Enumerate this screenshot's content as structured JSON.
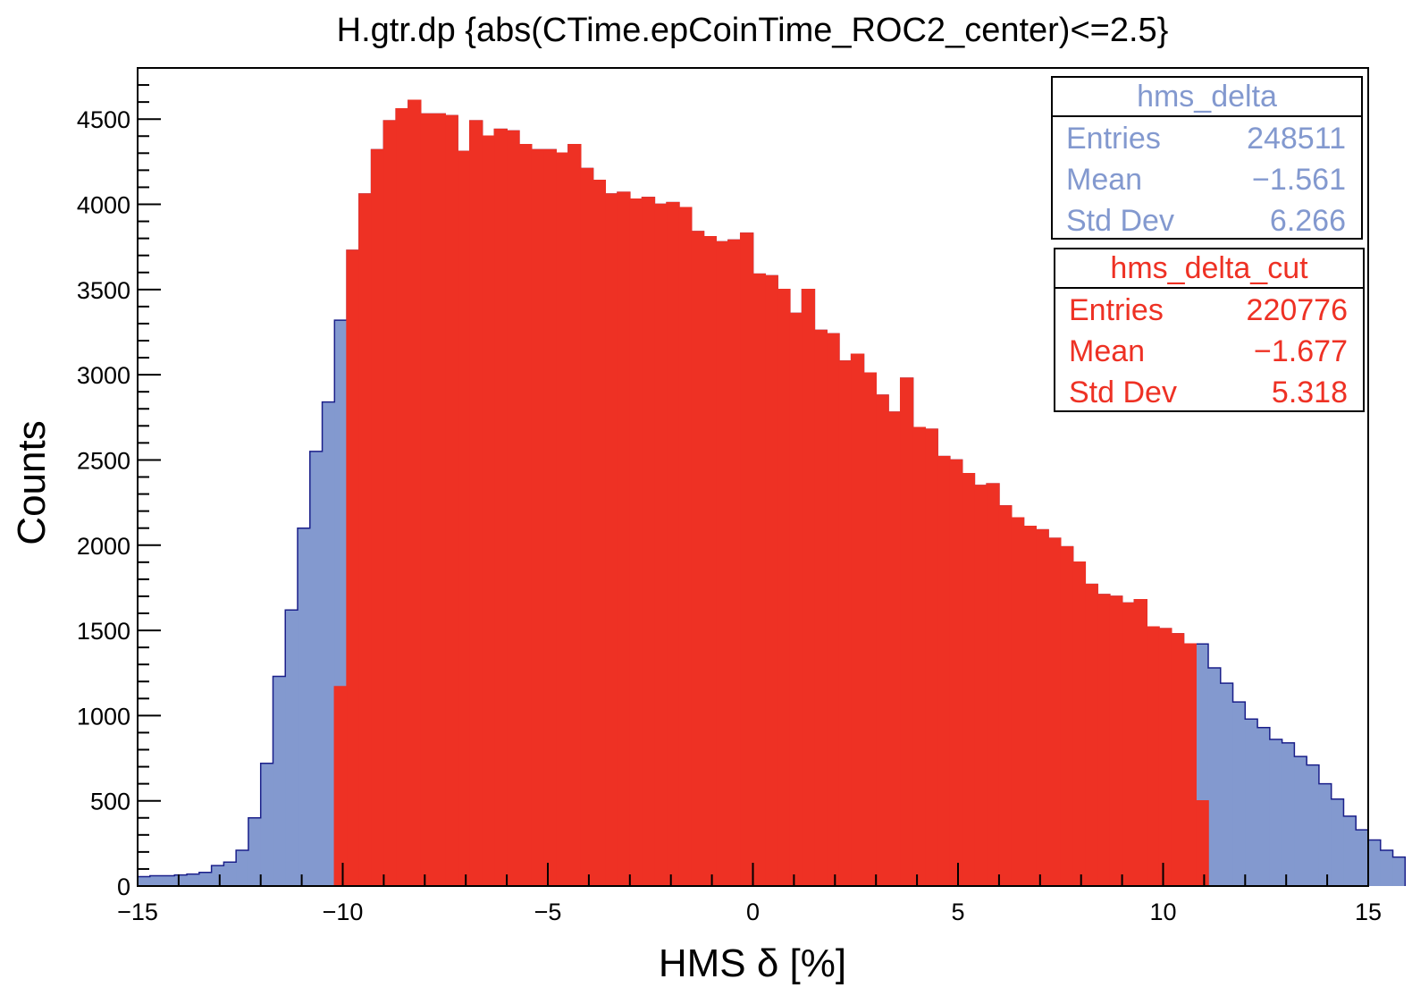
{
  "chart_data": {
    "type": "bar",
    "title": "H.gtr.dp {abs(CTime.epCoinTime_ROC2_center)<=2.5}",
    "xlabel": "HMS δ [%]",
    "ylabel": "Counts",
    "xlim": [
      -15,
      15
    ],
    "ylim": [
      0,
      4800
    ],
    "bin_width": 0.3,
    "grid": false,
    "x_ticks": [
      {
        "value": -15,
        "label": "−15"
      },
      {
        "value": -10,
        "label": "−10"
      },
      {
        "value": -5,
        "label": "−5"
      },
      {
        "value": 0,
        "label": "0"
      },
      {
        "value": 5,
        "label": "5"
      },
      {
        "value": 10,
        "label": "10"
      },
      {
        "value": 15,
        "label": "15"
      }
    ],
    "y_ticks": [
      {
        "value": 0,
        "label": "0"
      },
      {
        "value": 500,
        "label": "500"
      },
      {
        "value": 1000,
        "label": "1000"
      },
      {
        "value": 1500,
        "label": "1500"
      },
      {
        "value": 2000,
        "label": "2000"
      },
      {
        "value": 2500,
        "label": "2500"
      },
      {
        "value": 3000,
        "label": "3000"
      },
      {
        "value": 3500,
        "label": "3500"
      },
      {
        "value": 4000,
        "label": "4000"
      },
      {
        "value": 4500,
        "label": "4500"
      }
    ],
    "series": [
      {
        "name": "hms_delta",
        "color": "#8399cf",
        "line_color": "#1a1f8a",
        "x_start": -15,
        "values": [
          55,
          60,
          60,
          65,
          70,
          80,
          120,
          140,
          210,
          400,
          720,
          1230,
          1620,
          2100,
          2550,
          2840,
          3320,
          3730,
          4060,
          4320,
          4490,
          4560,
          4610,
          4530,
          4530,
          4520,
          4310,
          4490,
          4400,
          4440,
          4430,
          4350,
          4320,
          4320,
          4300,
          4350,
          4210,
          4140,
          4060,
          4070,
          4030,
          4040,
          4000,
          4010,
          3980,
          3840,
          3810,
          3780,
          3790,
          3830,
          3590,
          3580,
          3500,
          3360,
          3500,
          3260,
          3240,
          3080,
          3120,
          3010,
          2880,
          2780,
          2980,
          2690,
          2680,
          2520,
          2500,
          2420,
          2350,
          2360,
          2230,
          2160,
          2110,
          2090,
          2040,
          1990,
          1900,
          1770,
          1710,
          1700,
          1660,
          1680,
          1520,
          1510,
          1480,
          1420,
          1420,
          1280,
          1190,
          1080,
          980,
          930,
          860,
          840,
          760,
          710,
          600,
          510,
          410,
          330,
          270,
          210,
          170
        ]
      },
      {
        "name": "hms_delta_cut",
        "color": "#ee3124",
        "line_color": "#ee3124",
        "x_start": -10.2,
        "values": [
          1170,
          3730,
          4060,
          4320,
          4490,
          4560,
          4610,
          4530,
          4530,
          4520,
          4310,
          4490,
          4400,
          4440,
          4430,
          4350,
          4320,
          4320,
          4300,
          4350,
          4210,
          4140,
          4060,
          4070,
          4030,
          4040,
          4000,
          4010,
          3980,
          3840,
          3810,
          3780,
          3790,
          3830,
          3590,
          3580,
          3500,
          3360,
          3500,
          3260,
          3240,
          3080,
          3120,
          3010,
          2880,
          2780,
          2980,
          2690,
          2680,
          2520,
          2500,
          2420,
          2350,
          2360,
          2230,
          2160,
          2110,
          2090,
          2040,
          1990,
          1900,
          1770,
          1710,
          1700,
          1660,
          1680,
          1520,
          1510,
          1480,
          1420,
          500
        ]
      }
    ],
    "stats_boxes": [
      {
        "title": "hms_delta",
        "color": "#8399cf",
        "rows": [
          {
            "label": "Entries",
            "value": "248511"
          },
          {
            "label": "Mean",
            "value": "−1.561"
          },
          {
            "label": "Std Dev",
            "value": "6.266"
          }
        ]
      },
      {
        "title": "hms_delta_cut",
        "color": "#ee3124",
        "rows": [
          {
            "label": "Entries",
            "value": "220776"
          },
          {
            "label": "Mean",
            "value": "−1.677"
          },
          {
            "label": "Std Dev",
            "value": "5.318"
          }
        ]
      }
    ]
  }
}
